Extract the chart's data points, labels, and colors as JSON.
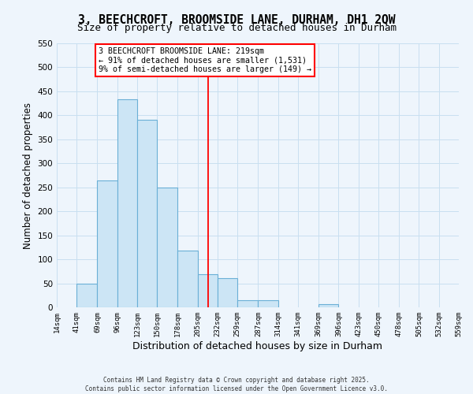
{
  "title": "3, BEECHCROFT, BROOMSIDE LANE, DURHAM, DH1 2QW",
  "subtitle": "Size of property relative to detached houses in Durham",
  "xlabel": "Distribution of detached houses by size in Durham",
  "ylabel": "Number of detached properties",
  "bar_edges": [
    14,
    41,
    69,
    96,
    123,
    150,
    178,
    205,
    232,
    259,
    287,
    314,
    341,
    369,
    396,
    423,
    450,
    478,
    505,
    532,
    559
  ],
  "bar_heights": [
    0,
    50,
    265,
    433,
    390,
    250,
    118,
    69,
    60,
    15,
    15,
    0,
    0,
    7,
    0,
    0,
    0,
    0,
    0,
    0
  ],
  "bar_color": "#cce5f5",
  "bar_edge_color": "#6aafd6",
  "property_line_x": 219,
  "ylim": [
    0,
    550
  ],
  "yticks": [
    0,
    50,
    100,
    150,
    200,
    250,
    300,
    350,
    400,
    450,
    500,
    550
  ],
  "grid_color": "#c8dff0",
  "background_color": "#eef5fc",
  "annotation_line1": "3 BEECHCROFT BROOMSIDE LANE: 219sqm",
  "annotation_line2": "← 91% of detached houses are smaller (1,531)",
  "annotation_line3": "9% of semi-detached houses are larger (149) →",
  "footer1": "Contains HM Land Registry data © Crown copyright and database right 2025.",
  "footer2": "Contains public sector information licensed under the Open Government Licence v3.0."
}
